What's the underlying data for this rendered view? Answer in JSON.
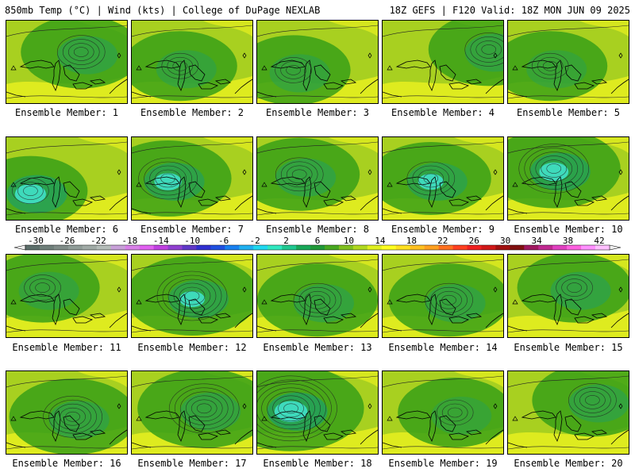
{
  "header": {
    "left": "850mb Temp (°C) | Wind (kts) | College of DuPage NEXLAB",
    "right": "18Z GEFS | F120 Valid: 18Z MON JUN 09 2025"
  },
  "panel_label_prefix": "Ensemble Member: ",
  "members": [
    {
      "label": "Ensemble Member: 1",
      "low": [
        0.62,
        0.38
      ],
      "rings": 4,
      "cold": 0.3
    },
    {
      "label": "Ensemble Member: 2",
      "low": [
        0.4,
        0.55
      ],
      "rings": 3,
      "cold": 0.2
    },
    {
      "label": "Ensemble Member: 3",
      "low": [
        0.3,
        0.6
      ],
      "rings": 3,
      "cold": 0.2
    },
    {
      "label": "Ensemble Member: 4",
      "low": [
        0.88,
        0.35
      ],
      "rings": 4,
      "cold": 0.3
    },
    {
      "label": "Ensemble Member: 5",
      "low": [
        0.35,
        0.55
      ],
      "rings": 3,
      "cold": 0.1
    },
    {
      "label": "Ensemble Member: 6",
      "low": [
        0.2,
        0.65
      ],
      "rings": 3,
      "cold": 0.8
    },
    {
      "label": "Ensemble Member: 7",
      "low": [
        0.3,
        0.5
      ],
      "rings": 5,
      "cold": 0.6
    },
    {
      "label": "Ensemble Member: 8",
      "low": [
        0.35,
        0.45
      ],
      "rings": 4,
      "cold": 0.4
    },
    {
      "label": "Ensemble Member: 9",
      "low": [
        0.4,
        0.5
      ],
      "rings": 4,
      "cold": 0.5
    },
    {
      "label": "Ensemble Member: 10",
      "low": [
        0.38,
        0.38
      ],
      "rings": 6,
      "cold": 0.7
    },
    {
      "label": "Ensemble Member: 11",
      "low": [
        0.3,
        0.4
      ],
      "rings": 3,
      "cold": 0.2
    },
    {
      "label": "Ensemble Member: 12",
      "low": [
        0.5,
        0.5
      ],
      "rings": 6,
      "cold": 0.5
    },
    {
      "label": "Ensemble Member: 13",
      "low": [
        0.5,
        0.55
      ],
      "rings": 4,
      "cold": 0.3
    },
    {
      "label": "Ensemble Member: 14",
      "low": [
        0.55,
        0.55
      ],
      "rings": 4,
      "cold": 0.3
    },
    {
      "label": "Ensemble Member: 15",
      "low": [
        0.55,
        0.4
      ],
      "rings": 3,
      "cold": 0.4
    },
    {
      "label": "Ensemble Member: 16",
      "low": [
        0.55,
        0.55
      ],
      "rings": 5,
      "cold": 0.3
    },
    {
      "label": "Ensemble Member: 17",
      "low": [
        0.6,
        0.45
      ],
      "rings": 6,
      "cold": 0.3
    },
    {
      "label": "Ensemble Member: 18",
      "low": [
        0.28,
        0.45
      ],
      "rings": 8,
      "cold": 0.9
    },
    {
      "label": "Ensemble Member: 19",
      "low": [
        0.6,
        0.5
      ],
      "rings": 3,
      "cold": 0.1
    },
    {
      "label": "Ensemble Member: 20",
      "low": [
        0.7,
        0.35
      ],
      "rings": 4,
      "cold": 0.3
    }
  ],
  "colorbar": {
    "ticks": [
      "-30",
      "-26",
      "-22",
      "-18",
      "-14",
      "-10",
      "-6",
      "-2",
      "2",
      "6",
      "10",
      "14",
      "18",
      "22",
      "26",
      "30",
      "34",
      "38",
      "42"
    ],
    "colors": [
      "#5c6e6a",
      "#6f7f7a",
      "#808c88",
      "#909c98",
      "#a0aaa6",
      "#b4bcb8",
      "#c8a0d8",
      "#d880e8",
      "#e060f0",
      "#c040e0",
      "#9040d0",
      "#6038c8",
      "#3030d0",
      "#2050e0",
      "#1880f0",
      "#20b0f0",
      "#20d8f0",
      "#30e8c0",
      "#20c890",
      "#18a858",
      "#209838",
      "#48a820",
      "#80c020",
      "#b0d820",
      "#e0f020",
      "#ffff20",
      "#ffe020",
      "#ffc020",
      "#ffa020",
      "#ff7020",
      "#ff4020",
      "#f02020",
      "#d01818",
      "#a01010",
      "#801010",
      "#a01860",
      "#c02890",
      "#e040c0",
      "#ff60e0",
      "#ff90ff",
      "#ffc0ff"
    ]
  },
  "map_colors": {
    "warm": "#e8f020",
    "mid": "#a8d020",
    "cool": "#38a018",
    "cold": "#20a060",
    "coldest": "#40e0c8"
  }
}
